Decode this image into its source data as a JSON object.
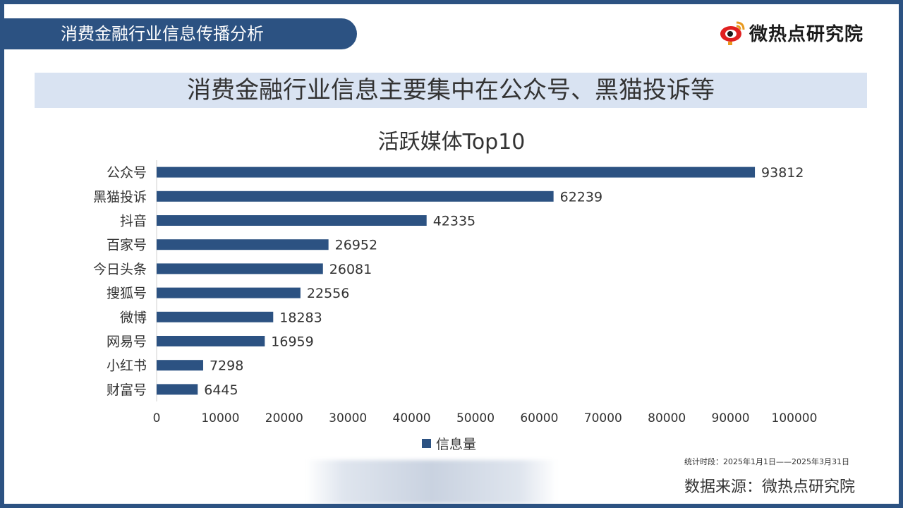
{
  "header": {
    "section_title": "消费金融行业信息传播分析"
  },
  "logo": {
    "text": "微热点研究院",
    "icon": "weibo-eye-icon"
  },
  "banner": {
    "text": "消费金融行业信息主要集中在公众号、黑猫投诉等"
  },
  "footer": {
    "period": "统计时段：2025年1月1日——2025年3月31日",
    "source": "数据来源：微热点研究院"
  },
  "colors": {
    "accent": "#2c5282",
    "banner_bg": "#d9e3f2",
    "bar": "#2c5282"
  },
  "chart_data": {
    "type": "bar",
    "orientation": "horizontal",
    "title": "活跃媒体Top10",
    "categories": [
      "公众号",
      "黑猫投诉",
      "抖音",
      "百家号",
      "今日头条",
      "搜狐号",
      "微博",
      "网易号",
      "小红书",
      "财富号"
    ],
    "series": [
      {
        "name": "信息量",
        "values": [
          93812,
          62239,
          42335,
          26952,
          26081,
          22556,
          18283,
          16959,
          7298,
          6445
        ]
      }
    ],
    "xlim": [
      0,
      100000
    ],
    "xticks": [
      0,
      10000,
      20000,
      30000,
      40000,
      50000,
      60000,
      70000,
      80000,
      90000,
      100000
    ],
    "grid": false,
    "legend": "bottom",
    "data_labels": true
  }
}
